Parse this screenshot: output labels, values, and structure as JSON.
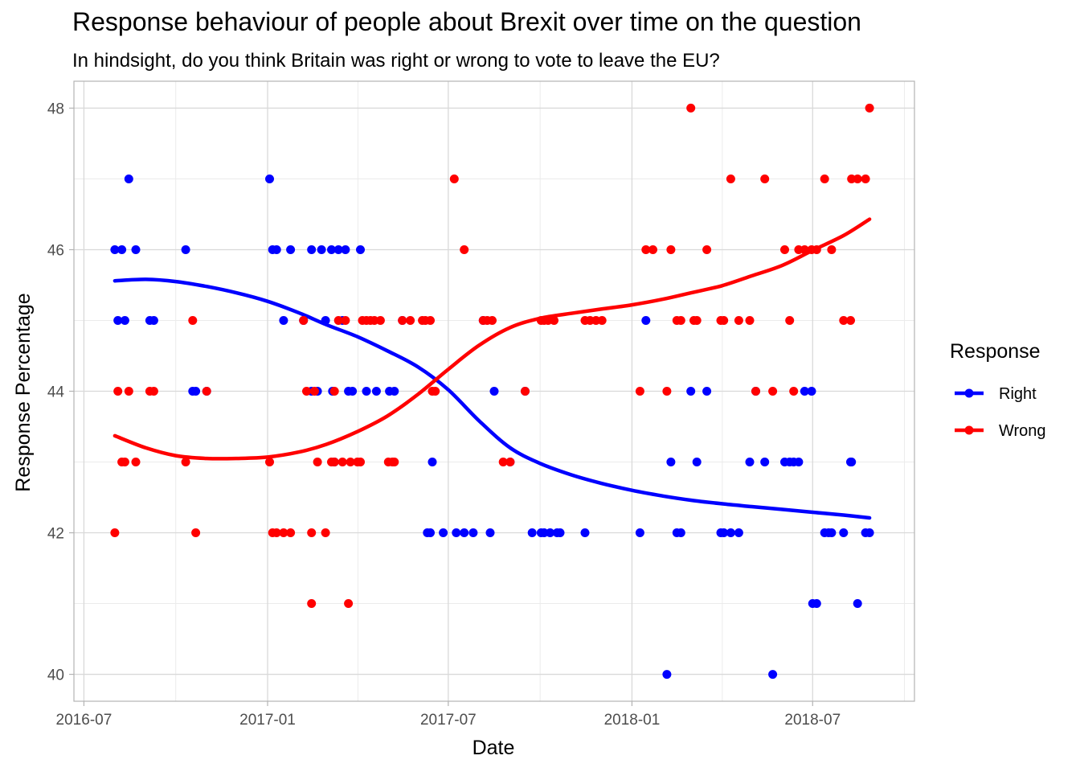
{
  "chart_data": {
    "type": "scatter",
    "title": "Response behaviour of people about Brexit over time on the question",
    "subtitle": "In hindsight, do you think Britain was right or wrong to vote to leave the EU?",
    "xlabel": "Date",
    "ylabel": "Response Percentage",
    "x_axis": {
      "type": "date",
      "range": [
        "2016-06-21",
        "2018-10-11"
      ],
      "ticks": [
        "2016-07-01",
        "2017-01-01",
        "2017-07-01",
        "2018-01-01",
        "2018-07-01"
      ],
      "tick_labels": [
        "2016-07",
        "2017-01",
        "2017-07",
        "2018-01",
        "2018-07"
      ]
    },
    "y_axis": {
      "range": [
        39.62,
        48.38
      ],
      "ticks": [
        40,
        42,
        44,
        46,
        48
      ],
      "tick_labels": [
        "40",
        "42",
        "44",
        "46",
        "48"
      ]
    },
    "grid": true,
    "smooth_lines": true,
    "legend": {
      "title": "Response",
      "position": "right",
      "entries": [
        "Right",
        "Wrong"
      ]
    },
    "series": [
      {
        "name": "Right",
        "color": "#0000ff",
        "points": [
          [
            "2016-08-01",
            46
          ],
          [
            "2016-08-04",
            45
          ],
          [
            "2016-08-08",
            46
          ],
          [
            "2016-08-11",
            45
          ],
          [
            "2016-08-15",
            47
          ],
          [
            "2016-08-22",
            46
          ],
          [
            "2016-09-05",
            45
          ],
          [
            "2016-09-09",
            45
          ],
          [
            "2016-10-11",
            46
          ],
          [
            "2016-10-18",
            44
          ],
          [
            "2016-10-21",
            44
          ],
          [
            "2016-11-01",
            44
          ],
          [
            "2017-01-03",
            47
          ],
          [
            "2017-01-06",
            46
          ],
          [
            "2017-01-10",
            46
          ],
          [
            "2017-01-17",
            45
          ],
          [
            "2017-01-24",
            46
          ],
          [
            "2017-02-06",
            45
          ],
          [
            "2017-02-14",
            46
          ],
          [
            "2017-02-14",
            44
          ],
          [
            "2017-02-20",
            44
          ],
          [
            "2017-02-24",
            46
          ],
          [
            "2017-02-28",
            45
          ],
          [
            "2017-03-06",
            46
          ],
          [
            "2017-03-07",
            44
          ],
          [
            "2017-03-09",
            43
          ],
          [
            "2017-03-13",
            46
          ],
          [
            "2017-03-17",
            45
          ],
          [
            "2017-03-20",
            46
          ],
          [
            "2017-03-23",
            44
          ],
          [
            "2017-03-27",
            44
          ],
          [
            "2017-04-04",
            46
          ],
          [
            "2017-04-10",
            44
          ],
          [
            "2017-04-20",
            44
          ],
          [
            "2017-05-03",
            44
          ],
          [
            "2017-05-08",
            44
          ],
          [
            "2017-05-16",
            45
          ],
          [
            "2017-06-10",
            42
          ],
          [
            "2017-06-13",
            42
          ],
          [
            "2017-06-15",
            43
          ],
          [
            "2017-06-26",
            42
          ],
          [
            "2017-07-09",
            42
          ],
          [
            "2017-07-17",
            42
          ],
          [
            "2017-07-26",
            42
          ],
          [
            "2017-08-05",
            45
          ],
          [
            "2017-08-12",
            42
          ],
          [
            "2017-08-16",
            44
          ],
          [
            "2017-09-01",
            43
          ],
          [
            "2017-09-16",
            44
          ],
          [
            "2017-09-23",
            42
          ],
          [
            "2017-10-02",
            42
          ],
          [
            "2017-10-05",
            42
          ],
          [
            "2017-10-11",
            42
          ],
          [
            "2017-10-18",
            42
          ],
          [
            "2017-10-21",
            42
          ],
          [
            "2017-11-15",
            42
          ],
          [
            "2018-01-09",
            42
          ],
          [
            "2018-01-15",
            45
          ],
          [
            "2018-02-05",
            40
          ],
          [
            "2018-02-09",
            43
          ],
          [
            "2018-02-15",
            42
          ],
          [
            "2018-02-19",
            42
          ],
          [
            "2018-03-01",
            44
          ],
          [
            "2018-03-07",
            43
          ],
          [
            "2018-03-17",
            44
          ],
          [
            "2018-03-31",
            42
          ],
          [
            "2018-04-03",
            42
          ],
          [
            "2018-04-10",
            42
          ],
          [
            "2018-04-18",
            42
          ],
          [
            "2018-04-29",
            43
          ],
          [
            "2018-05-05",
            44
          ],
          [
            "2018-05-14",
            43
          ],
          [
            "2018-05-22",
            40
          ],
          [
            "2018-06-03",
            43
          ],
          [
            "2018-06-08",
            43
          ],
          [
            "2018-06-12",
            43
          ],
          [
            "2018-06-17",
            43
          ],
          [
            "2018-06-23",
            44
          ],
          [
            "2018-06-30",
            44
          ],
          [
            "2018-07-01",
            41
          ],
          [
            "2018-07-05",
            41
          ],
          [
            "2018-07-13",
            42
          ],
          [
            "2018-07-17",
            42
          ],
          [
            "2018-07-20",
            42
          ],
          [
            "2018-08-01",
            42
          ],
          [
            "2018-08-08",
            43
          ],
          [
            "2018-08-09",
            43
          ],
          [
            "2018-08-15",
            41
          ],
          [
            "2018-08-23",
            42
          ],
          [
            "2018-08-27",
            42
          ]
        ],
        "smooth": [
          [
            "2016-08-01",
            45.56
          ],
          [
            "2016-09-01",
            45.58
          ],
          [
            "2016-10-01",
            45.55
          ],
          [
            "2016-11-01",
            45.48
          ],
          [
            "2016-12-01",
            45.39
          ],
          [
            "2017-01-01",
            45.27
          ],
          [
            "2017-02-01",
            45.11
          ],
          [
            "2017-03-01",
            44.94
          ],
          [
            "2017-04-01",
            44.77
          ],
          [
            "2017-05-01",
            44.57
          ],
          [
            "2017-06-01",
            44.34
          ],
          [
            "2017-07-01",
            44.02
          ],
          [
            "2017-08-01",
            43.58
          ],
          [
            "2017-09-01",
            43.2
          ],
          [
            "2017-10-01",
            42.98
          ],
          [
            "2017-11-01",
            42.82
          ],
          [
            "2017-12-01",
            42.7
          ],
          [
            "2018-01-01",
            42.6
          ],
          [
            "2018-02-01",
            42.52
          ],
          [
            "2018-03-01",
            42.46
          ],
          [
            "2018-04-01",
            42.41
          ],
          [
            "2018-05-01",
            42.37
          ],
          [
            "2018-06-01",
            42.33
          ],
          [
            "2018-07-01",
            42.29
          ],
          [
            "2018-08-01",
            42.25
          ],
          [
            "2018-08-27",
            42.21
          ]
        ]
      },
      {
        "name": "Wrong",
        "color": "#ff0000",
        "points": [
          [
            "2016-08-01",
            42
          ],
          [
            "2016-08-04",
            44
          ],
          [
            "2016-08-08",
            43
          ],
          [
            "2016-08-11",
            43
          ],
          [
            "2016-08-15",
            44
          ],
          [
            "2016-08-22",
            43
          ],
          [
            "2016-09-05",
            44
          ],
          [
            "2016-09-09",
            44
          ],
          [
            "2016-10-11",
            43
          ],
          [
            "2016-10-18",
            45
          ],
          [
            "2016-10-21",
            42
          ],
          [
            "2016-11-01",
            44
          ],
          [
            "2017-01-03",
            43
          ],
          [
            "2017-01-06",
            42
          ],
          [
            "2017-01-10",
            42
          ],
          [
            "2017-01-17",
            42
          ],
          [
            "2017-01-24",
            42
          ],
          [
            "2017-02-06",
            45
          ],
          [
            "2017-02-09",
            44
          ],
          [
            "2017-02-14",
            42
          ],
          [
            "2017-02-14",
            41
          ],
          [
            "2017-02-17",
            44
          ],
          [
            "2017-02-20",
            43
          ],
          [
            "2017-02-28",
            42
          ],
          [
            "2017-03-06",
            43
          ],
          [
            "2017-03-09",
            43
          ],
          [
            "2017-03-09",
            44
          ],
          [
            "2017-03-13",
            45
          ],
          [
            "2017-03-17",
            43
          ],
          [
            "2017-03-20",
            45
          ],
          [
            "2017-03-23",
            41
          ],
          [
            "2017-03-25",
            43
          ],
          [
            "2017-04-01",
            43
          ],
          [
            "2017-04-04",
            43
          ],
          [
            "2017-04-06",
            45
          ],
          [
            "2017-04-10",
            45
          ],
          [
            "2017-04-14",
            45
          ],
          [
            "2017-04-18",
            45
          ],
          [
            "2017-04-24",
            45
          ],
          [
            "2017-05-02",
            43
          ],
          [
            "2017-05-06",
            43
          ],
          [
            "2017-05-08",
            43
          ],
          [
            "2017-05-16",
            45
          ],
          [
            "2017-05-24",
            45
          ],
          [
            "2017-06-05",
            45
          ],
          [
            "2017-06-08",
            45
          ],
          [
            "2017-06-13",
            45
          ],
          [
            "2017-06-15",
            44
          ],
          [
            "2017-06-18",
            44
          ],
          [
            "2017-07-07",
            47
          ],
          [
            "2017-07-17",
            46
          ],
          [
            "2017-08-05",
            45
          ],
          [
            "2017-08-09",
            45
          ],
          [
            "2017-08-14",
            45
          ],
          [
            "2017-08-25",
            43
          ],
          [
            "2017-09-01",
            43
          ],
          [
            "2017-09-16",
            44
          ],
          [
            "2017-10-02",
            45
          ],
          [
            "2017-10-05",
            45
          ],
          [
            "2017-10-09",
            45
          ],
          [
            "2017-10-15",
            45
          ],
          [
            "2017-11-15",
            45
          ],
          [
            "2017-11-20",
            45
          ],
          [
            "2017-11-26",
            45
          ],
          [
            "2017-12-02",
            45
          ],
          [
            "2018-01-09",
            44
          ],
          [
            "2018-01-15",
            46
          ],
          [
            "2018-01-22",
            46
          ],
          [
            "2018-02-05",
            44
          ],
          [
            "2018-02-09",
            46
          ],
          [
            "2018-02-15",
            45
          ],
          [
            "2018-02-19",
            45
          ],
          [
            "2018-03-01",
            48
          ],
          [
            "2018-03-04",
            45
          ],
          [
            "2018-03-07",
            45
          ],
          [
            "2018-03-17",
            46
          ],
          [
            "2018-03-31",
            45
          ],
          [
            "2018-04-03",
            45
          ],
          [
            "2018-04-10",
            47
          ],
          [
            "2018-04-18",
            45
          ],
          [
            "2018-04-29",
            45
          ],
          [
            "2018-05-05",
            44
          ],
          [
            "2018-05-14",
            47
          ],
          [
            "2018-05-22",
            44
          ],
          [
            "2018-06-03",
            46
          ],
          [
            "2018-06-08",
            45
          ],
          [
            "2018-06-12",
            44
          ],
          [
            "2018-06-17",
            46
          ],
          [
            "2018-06-23",
            46
          ],
          [
            "2018-06-30",
            46
          ],
          [
            "2018-07-05",
            46
          ],
          [
            "2018-07-13",
            47
          ],
          [
            "2018-07-20",
            46
          ],
          [
            "2018-08-01",
            45
          ],
          [
            "2018-08-08",
            45
          ],
          [
            "2018-08-09",
            47
          ],
          [
            "2018-08-15",
            47
          ],
          [
            "2018-08-23",
            47
          ],
          [
            "2018-08-27",
            48
          ]
        ],
        "smooth": [
          [
            "2016-08-01",
            43.37
          ],
          [
            "2016-09-01",
            43.2
          ],
          [
            "2016-10-01",
            43.09
          ],
          [
            "2016-11-01",
            43.05
          ],
          [
            "2016-12-01",
            43.05
          ],
          [
            "2017-01-01",
            43.07
          ],
          [
            "2017-02-01",
            43.14
          ],
          [
            "2017-03-01",
            43.25
          ],
          [
            "2017-04-01",
            43.43
          ],
          [
            "2017-05-01",
            43.65
          ],
          [
            "2017-06-01",
            43.96
          ],
          [
            "2017-07-01",
            44.31
          ],
          [
            "2017-08-01",
            44.65
          ],
          [
            "2017-09-01",
            44.9
          ],
          [
            "2017-10-01",
            45.03
          ],
          [
            "2017-11-01",
            45.1
          ],
          [
            "2017-12-01",
            45.16
          ],
          [
            "2018-01-01",
            45.22
          ],
          [
            "2018-02-01",
            45.3
          ],
          [
            "2018-03-01",
            45.39
          ],
          [
            "2018-04-01",
            45.49
          ],
          [
            "2018-05-01",
            45.63
          ],
          [
            "2018-06-01",
            45.78
          ],
          [
            "2018-07-01",
            45.99
          ],
          [
            "2018-08-01",
            46.2
          ],
          [
            "2018-08-27",
            46.43
          ]
        ]
      }
    ]
  }
}
